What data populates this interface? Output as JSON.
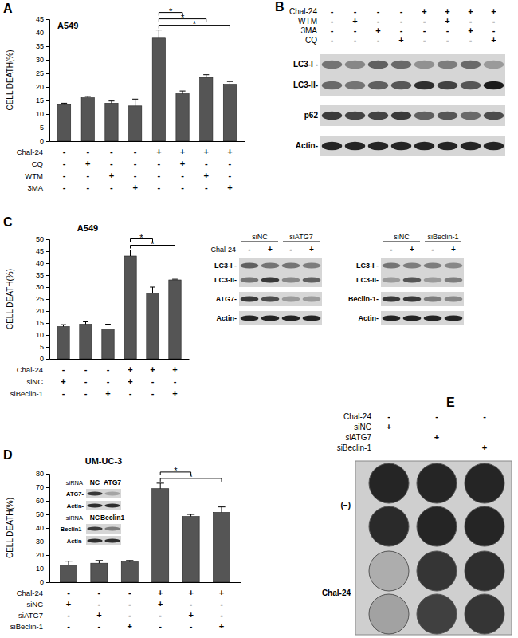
{
  "chart_data": [
    {
      "type": "bar",
      "panel": "A",
      "title": "A549",
      "y_label": "CELL DEATH(%)",
      "categories": [
        null,
        null,
        null,
        null,
        null,
        null,
        null,
        null
      ],
      "values": [
        13.5,
        16,
        14,
        13,
        38,
        17.5,
        23.5,
        21
      ],
      "errors": [
        0.5,
        0.5,
        0.8,
        2.5,
        3,
        1,
        1,
        1
      ],
      "color": "#555555",
      "ylim": [
        0,
        45
      ],
      "yticks": [
        0,
        5,
        10,
        15,
        20,
        25,
        30,
        35,
        40,
        45
      ],
      "conditions": [
        {
          "name": "Chal-24",
          "signs": [
            "-",
            "-",
            "-",
            "-",
            "+",
            "+",
            "+",
            "+"
          ]
        },
        {
          "name": "CQ",
          "signs": [
            "-",
            "+",
            "-",
            "-",
            "-",
            "+",
            "-",
            "-"
          ]
        },
        {
          "name": "WTM",
          "signs": [
            "-",
            "-",
            "+",
            "-",
            "-",
            "-",
            "+",
            "-"
          ]
        },
        {
          "name": "3MA",
          "signs": [
            "-",
            "-",
            "-",
            "+",
            "-",
            "-",
            "-",
            "+"
          ]
        }
      ],
      "significance": [
        {
          "pair": [
            4,
            5
          ],
          "label": "*"
        },
        {
          "pair": [
            4,
            6
          ],
          "label": "*"
        },
        {
          "pair": [
            4,
            7
          ],
          "label": "*"
        }
      ]
    },
    {
      "type": "bar",
      "panel": "C",
      "title": "A549",
      "y_label": "CELL DEATH(%)",
      "categories": [
        null,
        null,
        null,
        null,
        null,
        null
      ],
      "values": [
        13.5,
        14.5,
        12.5,
        43,
        27.5,
        33
      ],
      "errors": [
        0.8,
        1,
        2,
        2.5,
        2.5,
        0.3
      ],
      "color": "#555555",
      "ylim": [
        0,
        50
      ],
      "yticks": [
        0,
        5,
        10,
        15,
        20,
        25,
        30,
        35,
        40,
        45,
        50
      ],
      "conditions": [
        {
          "name": "Chal-24",
          "signs": [
            "-",
            "-",
            "-",
            "+",
            "+",
            "+"
          ]
        },
        {
          "name": "siNC",
          "signs": [
            "+",
            "-",
            "-",
            "+",
            "-",
            "-"
          ]
        },
        {
          "name": "siBeclin-1",
          "signs": [
            "-",
            "-",
            "+",
            "-",
            "-",
            "+"
          ]
        }
      ],
      "significance": [
        {
          "pair": [
            3,
            4
          ],
          "label": "*"
        },
        {
          "pair": [
            3,
            5
          ],
          "label": "*"
        }
      ]
    },
    {
      "type": "bar",
      "panel": "D",
      "title": "UM-UC-3",
      "y_label": "CELL DEATH(%)",
      "categories": [
        null,
        null,
        null,
        null,
        null,
        null
      ],
      "values": [
        12.5,
        14,
        15,
        69,
        48.5,
        51.5
      ],
      "errors": [
        3,
        2,
        1,
        4,
        1.5,
        4
      ],
      "color": "#555555",
      "ylim": [
        0,
        80
      ],
      "yticks": [
        0,
        10,
        20,
        30,
        40,
        50,
        60,
        70,
        80
      ],
      "conditions": [
        {
          "name": "Chal-24",
          "signs": [
            "-",
            "-",
            "-",
            "+",
            "+",
            "+"
          ]
        },
        {
          "name": "siNC",
          "signs": [
            "+",
            "-",
            "-",
            "+",
            "-",
            "-"
          ]
        },
        {
          "name": "siATG7",
          "signs": [
            "-",
            "+",
            "-",
            "-",
            "+",
            "-"
          ]
        },
        {
          "name": "siBeclin-1",
          "signs": [
            "-",
            "-",
            "+",
            "-",
            "-",
            "+"
          ]
        }
      ],
      "significance": [
        {
          "pair": [
            3,
            4
          ],
          "label": "*"
        },
        {
          "pair": [
            3,
            5
          ],
          "label": "*"
        }
      ]
    }
  ],
  "blots": [
    {
      "panel": "B",
      "header": [
        {
          "name": "Chal-24",
          "signs": [
            "-",
            "-",
            "-",
            "-",
            "+",
            "+",
            "+",
            "+"
          ]
        },
        {
          "name": "WTM",
          "signs": [
            "-",
            "+",
            "-",
            "-",
            "-",
            "+",
            "-",
            "-"
          ]
        },
        {
          "name": "3MA",
          "signs": [
            "-",
            "-",
            "+",
            "-",
            "-",
            "-",
            "+",
            "-"
          ]
        },
        {
          "name": "CQ",
          "signs": [
            "-",
            "-",
            "-",
            "+",
            "-",
            "-",
            "-",
            "+"
          ]
        }
      ],
      "strips": [
        {
          "labels": [
            "LC3-I -",
            "LC3-II-"
          ],
          "intensity": [
            [
              0.5,
              0.4,
              0.6,
              0.55,
              0.35,
              0.45,
              0.55,
              0.3
            ],
            [
              0.55,
              0.5,
              0.6,
              0.65,
              0.85,
              0.75,
              0.65,
              0.95
            ]
          ]
        },
        {
          "labels": [
            "p62"
          ],
          "intensity": [
            [
              0.8,
              0.75,
              0.75,
              0.8,
              0.6,
              0.65,
              0.55,
              0.7
            ]
          ]
        },
        {
          "labels": [
            "Actin-"
          ],
          "intensity": [
            [
              0.9,
              0.9,
              0.9,
              0.9,
              0.9,
              0.9,
              0.9,
              0.9
            ]
          ]
        }
      ]
    },
    {
      "groups": [
        "siNC",
        "siATG7"
      ],
      "header": [
        {
          "name": "Chal-24",
          "signs": [
            "-",
            "+",
            "-",
            "+"
          ]
        }
      ],
      "strips": [
        {
          "labels": [
            "LC3-I -",
            "LC3-II-"
          ],
          "intensity": [
            [
              0.6,
              0.5,
              0.5,
              0.45
            ],
            [
              0.5,
              0.8,
              0.4,
              0.6
            ]
          ]
        },
        {
          "labels": [
            "ATG7-"
          ],
          "intensity": [
            [
              0.8,
              0.7,
              0.3,
              0.3
            ]
          ]
        },
        {
          "labels": [
            "Actin-"
          ],
          "intensity": [
            [
              0.9,
              0.9,
              0.9,
              0.9
            ]
          ]
        }
      ]
    },
    {
      "groups": [
        "siNC",
        "siBeclin-1"
      ],
      "header": [
        {
          "signs": [
            "-",
            "+",
            "-",
            "+"
          ]
        }
      ],
      "strips": [
        {
          "labels": [
            "LC3-I -",
            "LC3-II-"
          ],
          "intensity": [
            [
              0.5,
              0.45,
              0.45,
              0.4
            ],
            [
              0.3,
              0.65,
              0.3,
              0.45
            ]
          ]
        },
        {
          "labels": [
            "Beclin-1-"
          ],
          "intensity": [
            [
              0.8,
              0.8,
              0.45,
              0.4
            ]
          ]
        },
        {
          "labels": [
            "Actin-"
          ],
          "intensity": [
            [
              0.9,
              0.9,
              0.9,
              0.9
            ]
          ]
        }
      ]
    },
    {
      "header": [
        {
          "name": "siRNA",
          "signs": [
            "NC",
            "ATG7"
          ]
        }
      ],
      "strips": [
        {
          "labels": [
            "ATG7-"
          ],
          "intensity": [
            [
              0.8,
              0.25
            ]
          ]
        },
        {
          "labels": [
            "Actin-"
          ],
          "intensity": [
            [
              0.85,
              0.85
            ]
          ]
        }
      ]
    },
    {
      "header": [
        {
          "name": "siRNA",
          "signs": [
            "NC",
            "Beclin1"
          ]
        }
      ],
      "strips": [
        {
          "labels": [
            "Beclin1-"
          ],
          "intensity": [
            [
              0.8,
              0.45
            ]
          ]
        },
        {
          "labels": [
            "Actin-"
          ],
          "intensity": [
            [
              0.85,
              0.85
            ]
          ]
        }
      ]
    }
  ],
  "plate": {
    "panel": "E",
    "header": [
      {
        "name": "Chal-24",
        "signs": [
          "-",
          "-",
          "-"
        ]
      },
      {
        "name": "siNC",
        "signs": [
          "+",
          "",
          ""
        ]
      },
      {
        "name": "siATG7",
        "signs": [
          "",
          "+",
          ""
        ]
      },
      {
        "name": "siBeclin-1",
        "signs": [
          "",
          "",
          "+"
        ]
      }
    ],
    "rows": [
      {
        "label": "(−)",
        "staining": [
          [
            0.92,
            0.92,
            0.92
          ],
          [
            0.9,
            0.92,
            0.92
          ]
        ]
      },
      {
        "label": "Chal-24",
        "staining": [
          [
            0.3,
            0.85,
            0.88
          ],
          [
            0.35,
            0.8,
            0.85
          ]
        ]
      }
    ]
  }
}
